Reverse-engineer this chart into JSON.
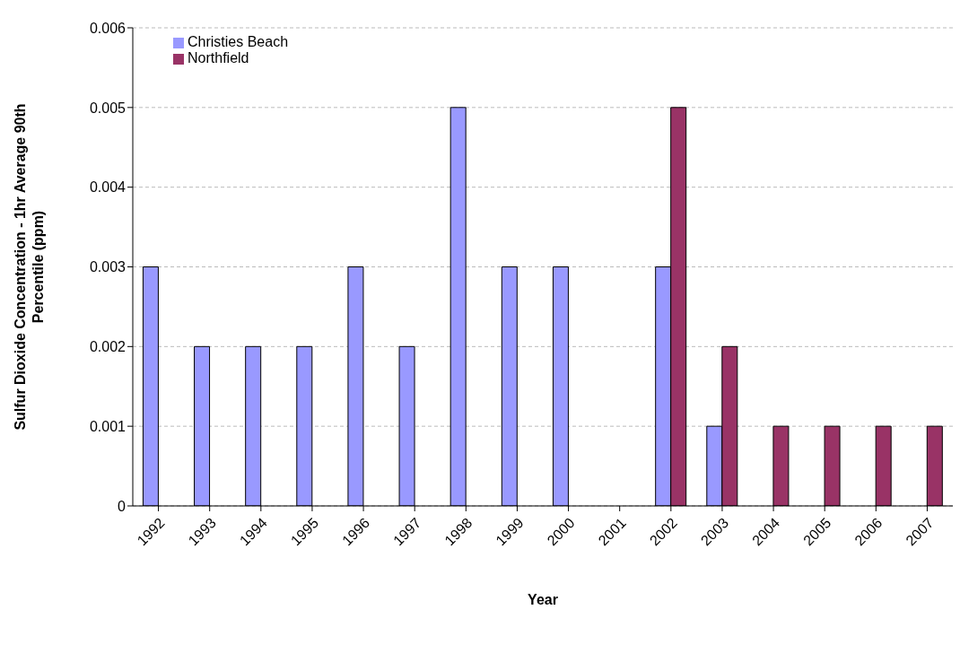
{
  "chart_data": {
    "type": "bar",
    "xlabel": "Year",
    "ylabel": "Sulfur Dioxide Concentration - 1hr Average 90th Percentile (ppm)",
    "categories": [
      "1992",
      "1993",
      "1994",
      "1995",
      "1996",
      "1997",
      "1998",
      "1999",
      "2000",
      "2001",
      "2002",
      "2003",
      "2004",
      "2005",
      "2006",
      "2007"
    ],
    "series": [
      {
        "name": "Christies Beach",
        "color": "#9999ff",
        "values": [
          0.003,
          0.002,
          0.002,
          0.002,
          0.003,
          0.002,
          0.005,
          0.003,
          0.003,
          null,
          0.003,
          0.001,
          null,
          null,
          null,
          null
        ]
      },
      {
        "name": "Northfield",
        "color": "#993366",
        "values": [
          null,
          null,
          null,
          null,
          null,
          null,
          null,
          null,
          null,
          null,
          0.005,
          0.002,
          0.001,
          0.001,
          0.001,
          0.001
        ]
      }
    ],
    "ylim": [
      0,
      0.006
    ],
    "yticks": [
      0,
      0.001,
      0.002,
      0.003,
      0.004,
      0.005,
      0.006
    ],
    "grid": "y",
    "legend": "top left"
  }
}
